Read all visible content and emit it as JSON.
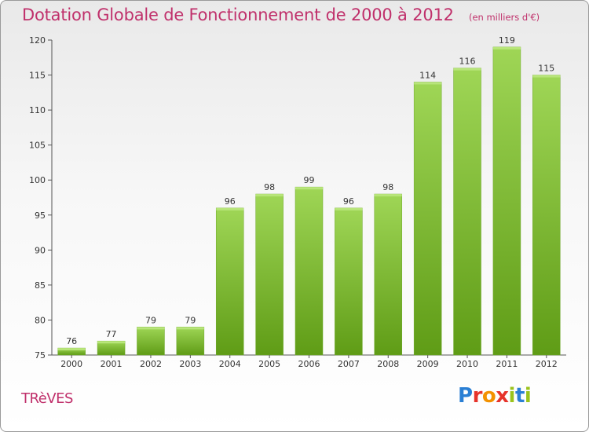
{
  "header": {
    "title": "Dotation Globale de Fonctionnement de 2000 à 2012",
    "unit": "(en milliers d'€)"
  },
  "footer": {
    "commune": "TRèVES",
    "brand": "Proxiti",
    "brand_colors": [
      "#2a7fd4",
      "#e6332a",
      "#f39200",
      "#e6332a",
      "#9bc31c",
      "#2a7fd4",
      "#9bc31c"
    ]
  },
  "colors": {
    "title": "#c0306b",
    "bar_top": "#9fd656",
    "bar_bottom": "#5f9c16",
    "axis": "#555555",
    "grid": "#cccccc"
  },
  "chart_data": {
    "type": "bar",
    "title": "Dotation Globale de Fonctionnement de 2000 à 2012",
    "xlabel": "",
    "ylabel": "",
    "categories": [
      "2000",
      "2001",
      "2002",
      "2003",
      "2004",
      "2005",
      "2006",
      "2007",
      "2008",
      "2009",
      "2010",
      "2011",
      "2012"
    ],
    "values": [
      76,
      77,
      79,
      79,
      96,
      98,
      99,
      96,
      98,
      114,
      116,
      119,
      115
    ],
    "ylim": [
      75,
      120
    ],
    "yticks": [
      75,
      80,
      85,
      90,
      95,
      100,
      105,
      110,
      115,
      120
    ],
    "grid": false,
    "data_labels": true
  }
}
